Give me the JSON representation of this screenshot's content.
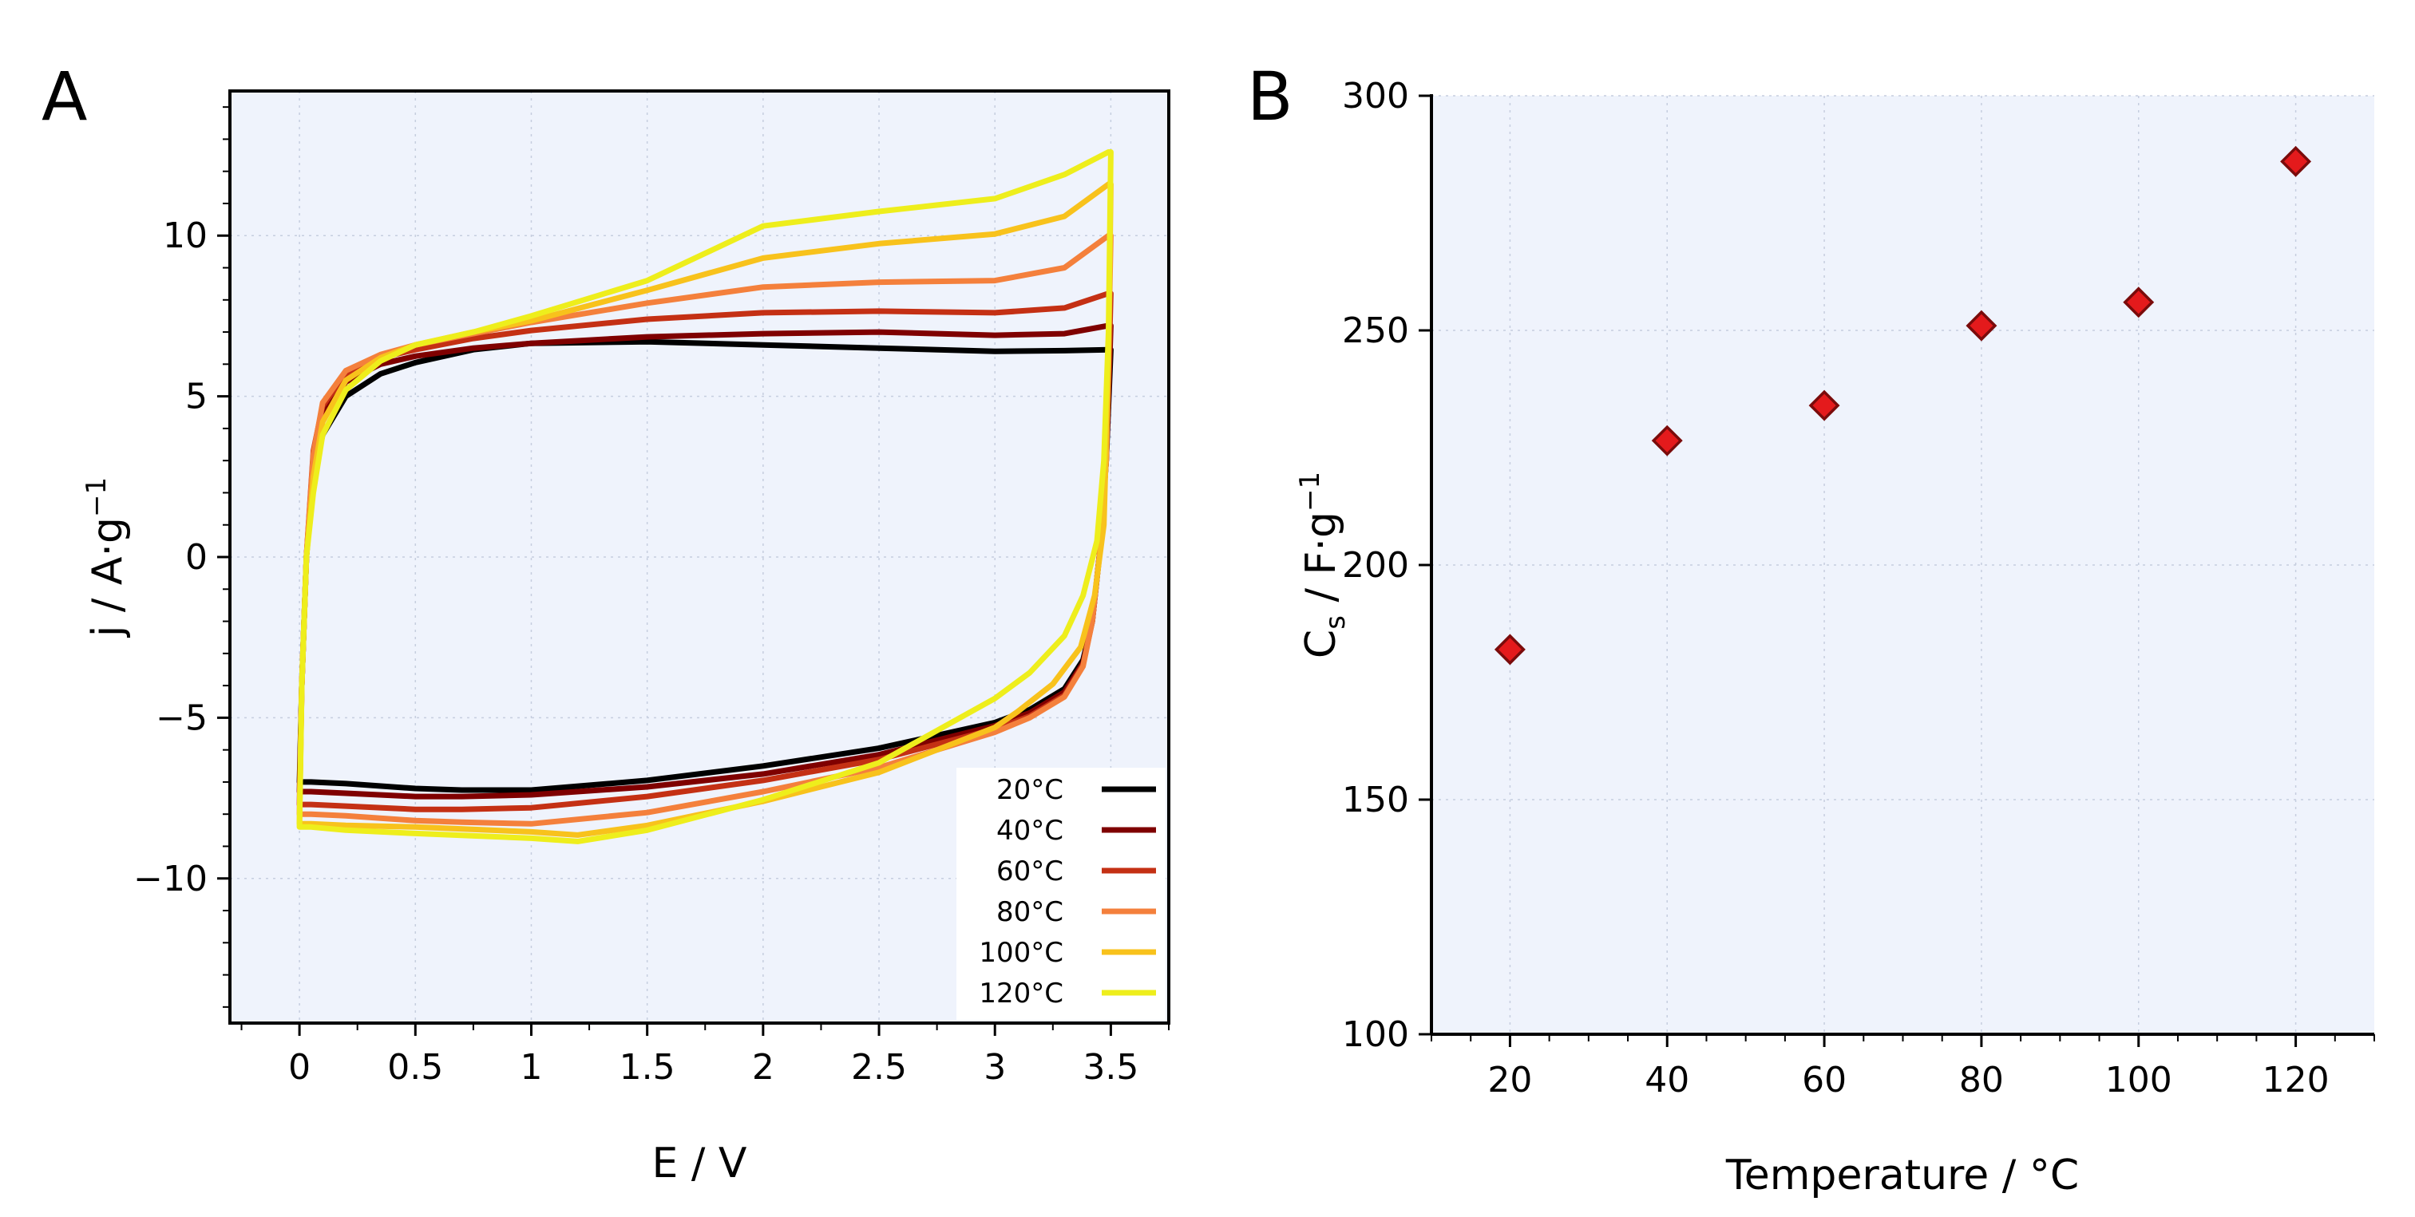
{
  "panels": {
    "a": {
      "letter": "A"
    },
    "b": {
      "letter": "B"
    }
  },
  "chart_data": [
    {
      "type": "line",
      "xlabel": "E / V",
      "ylabel": "j / A·g",
      "ylabel_superscript": "−1",
      "xlim": [
        -0.3,
        3.75
      ],
      "ylim": [
        -14.5,
        14.5
      ],
      "xticks": [
        0,
        0.5,
        1,
        1.5,
        2,
        2.5,
        3,
        3.5
      ],
      "xtick_labels": [
        "0",
        "0.5",
        "1",
        "1.5",
        "2",
        "2.5",
        "3",
        "3.5"
      ],
      "yticks": [
        -10,
        -5,
        0,
        5,
        10
      ],
      "ytick_labels": [
        "−10",
        "−5",
        "0",
        "5",
        "10"
      ],
      "grid": true,
      "legend_position": "bottom-right",
      "colors": {
        "plot_background": "#eff3fc",
        "grid": "#c6cedf"
      },
      "series": [
        {
          "name": "20°C",
          "color": "#000000",
          "upper": [
            [
              0,
              -7.0
            ],
            [
              0.01,
              -4
            ],
            [
              0.03,
              0
            ],
            [
              0.06,
              2.5
            ],
            [
              0.1,
              3.8
            ],
            [
              0.2,
              5.0
            ],
            [
              0.35,
              5.7
            ],
            [
              0.5,
              6.05
            ],
            [
              0.75,
              6.45
            ],
            [
              1.0,
              6.65
            ],
            [
              1.5,
              6.7
            ],
            [
              2.0,
              6.6
            ],
            [
              2.5,
              6.5
            ],
            [
              3.0,
              6.4
            ],
            [
              3.3,
              6.42
            ],
            [
              3.49,
              6.45
            ]
          ],
          "lower": [
            [
              3.5,
              6.45
            ],
            [
              3.48,
              3
            ],
            [
              3.45,
              0
            ],
            [
              3.42,
              -2
            ],
            [
              3.38,
              -3.2
            ],
            [
              3.3,
              -4.1
            ],
            [
              3.15,
              -4.75
            ],
            [
              3.0,
              -5.15
            ],
            [
              2.5,
              -5.95
            ],
            [
              2.0,
              -6.5
            ],
            [
              1.5,
              -6.95
            ],
            [
              1.0,
              -7.25
            ],
            [
              0.7,
              -7.25
            ],
            [
              0.5,
              -7.2
            ],
            [
              0.2,
              -7.05
            ],
            [
              0.05,
              -7.0
            ],
            [
              0,
              -7.0
            ]
          ]
        },
        {
          "name": "40°C",
          "color": "#7f0000",
          "upper": [
            [
              0,
              -7.3
            ],
            [
              0.01,
              -4
            ],
            [
              0.03,
              0
            ],
            [
              0.06,
              3.0
            ],
            [
              0.1,
              4.4
            ],
            [
              0.2,
              5.45
            ],
            [
              0.35,
              6.0
            ],
            [
              0.5,
              6.25
            ],
            [
              0.75,
              6.5
            ],
            [
              1.0,
              6.65
            ],
            [
              1.5,
              6.85
            ],
            [
              2.0,
              6.95
            ],
            [
              2.5,
              7.0
            ],
            [
              3.0,
              6.9
            ],
            [
              3.3,
              6.95
            ],
            [
              3.49,
              7.2
            ]
          ],
          "lower": [
            [
              3.5,
              7.2
            ],
            [
              3.48,
              3
            ],
            [
              3.45,
              0
            ],
            [
              3.42,
              -2
            ],
            [
              3.38,
              -3.3
            ],
            [
              3.3,
              -4.2
            ],
            [
              3.15,
              -4.85
            ],
            [
              3.0,
              -5.25
            ],
            [
              2.5,
              -6.15
            ],
            [
              2.0,
              -6.75
            ],
            [
              1.5,
              -7.15
            ],
            [
              1.0,
              -7.4
            ],
            [
              0.7,
              -7.45
            ],
            [
              0.5,
              -7.45
            ],
            [
              0.2,
              -7.35
            ],
            [
              0.05,
              -7.3
            ],
            [
              0,
              -7.3
            ]
          ]
        },
        {
          "name": "60°C",
          "color": "#c43014",
          "upper": [
            [
              0,
              -7.7
            ],
            [
              0.01,
              -4
            ],
            [
              0.03,
              0
            ],
            [
              0.06,
              3.3
            ],
            [
              0.1,
              4.7
            ],
            [
              0.2,
              5.7
            ],
            [
              0.35,
              6.2
            ],
            [
              0.5,
              6.45
            ],
            [
              0.75,
              6.8
            ],
            [
              1.0,
              7.05
            ],
            [
              1.5,
              7.4
            ],
            [
              2.0,
              7.6
            ],
            [
              2.5,
              7.65
            ],
            [
              3.0,
              7.6
            ],
            [
              3.3,
              7.75
            ],
            [
              3.49,
              8.2
            ]
          ],
          "lower": [
            [
              3.5,
              8.2
            ],
            [
              3.48,
              3
            ],
            [
              3.45,
              0
            ],
            [
              3.42,
              -2
            ],
            [
              3.38,
              -3.35
            ],
            [
              3.3,
              -4.3
            ],
            [
              3.15,
              -4.95
            ],
            [
              3.0,
              -5.35
            ],
            [
              2.5,
              -6.3
            ],
            [
              2.0,
              -6.95
            ],
            [
              1.5,
              -7.45
            ],
            [
              1.0,
              -7.8
            ],
            [
              0.7,
              -7.85
            ],
            [
              0.5,
              -7.85
            ],
            [
              0.2,
              -7.75
            ],
            [
              0.05,
              -7.7
            ],
            [
              0,
              -7.7
            ]
          ]
        },
        {
          "name": "80°C",
          "color": "#f4803c",
          "upper": [
            [
              0,
              -8.0
            ],
            [
              0.01,
              -4
            ],
            [
              0.03,
              0
            ],
            [
              0.06,
              3.2
            ],
            [
              0.1,
              4.8
            ],
            [
              0.2,
              5.8
            ],
            [
              0.35,
              6.3
            ],
            [
              0.5,
              6.6
            ],
            [
              0.75,
              6.95
            ],
            [
              1.0,
              7.3
            ],
            [
              1.5,
              7.9
            ],
            [
              2.0,
              8.4
            ],
            [
              2.5,
              8.55
            ],
            [
              3.0,
              8.6
            ],
            [
              3.3,
              9.0
            ],
            [
              3.49,
              10.0
            ]
          ],
          "lower": [
            [
              3.5,
              10.0
            ],
            [
              3.48,
              3
            ],
            [
              3.45,
              0
            ],
            [
              3.42,
              -2
            ],
            [
              3.38,
              -3.4
            ],
            [
              3.3,
              -4.35
            ],
            [
              3.15,
              -5.0
            ],
            [
              3.0,
              -5.45
            ],
            [
              2.5,
              -6.55
            ],
            [
              2.0,
              -7.3
            ],
            [
              1.5,
              -7.95
            ],
            [
              1.0,
              -8.3
            ],
            [
              0.7,
              -8.25
            ],
            [
              0.5,
              -8.2
            ],
            [
              0.2,
              -8.05
            ],
            [
              0.05,
              -8.0
            ],
            [
              0,
              -8.0
            ]
          ]
        },
        {
          "name": "100°C",
          "color": "#f8c21c",
          "upper": [
            [
              0,
              -8.3
            ],
            [
              0.01,
              -4
            ],
            [
              0.03,
              0
            ],
            [
              0.06,
              2.5
            ],
            [
              0.1,
              4.2
            ],
            [
              0.2,
              5.5
            ],
            [
              0.35,
              6.2
            ],
            [
              0.5,
              6.6
            ],
            [
              0.75,
              7.0
            ],
            [
              1.0,
              7.35
            ],
            [
              1.5,
              8.3
            ],
            [
              2.0,
              9.3
            ],
            [
              2.5,
              9.75
            ],
            [
              3.0,
              10.05
            ],
            [
              3.3,
              10.6
            ],
            [
              3.49,
              11.6
            ]
          ],
          "lower": [
            [
              3.5,
              11.6
            ],
            [
              3.49,
              6
            ],
            [
              3.47,
              1
            ],
            [
              3.43,
              -1.2
            ],
            [
              3.37,
              -2.8
            ],
            [
              3.25,
              -3.95
            ],
            [
              3.1,
              -4.8
            ],
            [
              3.0,
              -5.3
            ],
            [
              2.5,
              -6.7
            ],
            [
              2.0,
              -7.6
            ],
            [
              1.5,
              -8.35
            ],
            [
              1.2,
              -8.65
            ],
            [
              1.0,
              -8.55
            ],
            [
              0.5,
              -8.4
            ],
            [
              0.2,
              -8.35
            ],
            [
              0.05,
              -8.3
            ],
            [
              0,
              -8.3
            ]
          ]
        },
        {
          "name": "120°C",
          "color": "#eeee1c",
          "upper": [
            [
              0,
              -8.4
            ],
            [
              0.01,
              -4
            ],
            [
              0.03,
              0
            ],
            [
              0.06,
              2.0
            ],
            [
              0.1,
              3.8
            ],
            [
              0.2,
              5.2
            ],
            [
              0.35,
              6.1
            ],
            [
              0.5,
              6.6
            ],
            [
              0.75,
              7.0
            ],
            [
              1.0,
              7.5
            ],
            [
              1.5,
              8.6
            ],
            [
              2.0,
              10.3
            ],
            [
              2.5,
              10.75
            ],
            [
              3.0,
              11.15
            ],
            [
              3.3,
              11.9
            ],
            [
              3.49,
              12.6
            ]
          ],
          "lower": [
            [
              3.5,
              12.6
            ],
            [
              3.49,
              7
            ],
            [
              3.47,
              3
            ],
            [
              3.44,
              0.5
            ],
            [
              3.38,
              -1.2
            ],
            [
              3.3,
              -2.45
            ],
            [
              3.15,
              -3.6
            ],
            [
              3.0,
              -4.4
            ],
            [
              2.5,
              -6.4
            ],
            [
              2.0,
              -7.55
            ],
            [
              1.5,
              -8.5
            ],
            [
              1.2,
              -8.85
            ],
            [
              1.0,
              -8.75
            ],
            [
              0.5,
              -8.6
            ],
            [
              0.2,
              -8.5
            ],
            [
              0.05,
              -8.4
            ],
            [
              0,
              -8.4
            ]
          ]
        }
      ]
    },
    {
      "type": "scatter",
      "xlabel": "Temperature / °C",
      "ylabel_main": "C",
      "ylabel_sub": "s",
      "ylabel_rest": " / F·g",
      "ylabel_superscript": "−1",
      "xlim": [
        10,
        130
      ],
      "ylim": [
        100,
        300
      ],
      "xticks": [
        20,
        40,
        60,
        80,
        100,
        120
      ],
      "xtick_labels": [
        "20",
        "40",
        "60",
        "80",
        "100",
        "120"
      ],
      "yticks": [
        100,
        150,
        200,
        250,
        300
      ],
      "ytick_labels": [
        "100",
        "150",
        "200",
        "250",
        "300"
      ],
      "grid": true,
      "marker": "diamond",
      "colors": {
        "plot_background": "#eff3fc",
        "grid": "#c6cedf",
        "marker_fill": "#e41a1c",
        "marker_edge": "#7a0b0b"
      },
      "series": [
        {
          "x": [
            20,
            40,
            60,
            80,
            100,
            120
          ],
          "y": [
            182,
            226.5,
            234,
            251,
            256,
            286
          ]
        }
      ]
    }
  ]
}
